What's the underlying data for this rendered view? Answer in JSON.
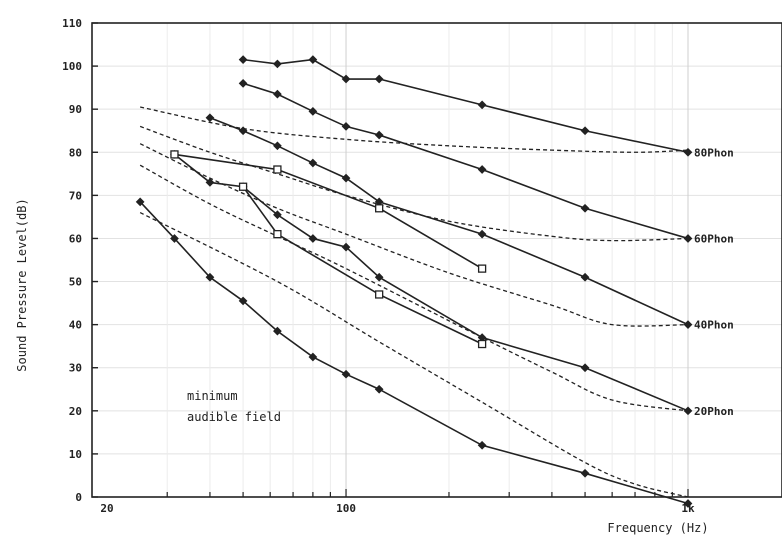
{
  "chart_data": {
    "type": "line",
    "xlabel": "Frequency (Hz)",
    "ylabel": "Sound Pressure Level(dB)",
    "x_scale": "log",
    "xlim": [
      20,
      1600
    ],
    "ylim": [
      0,
      110
    ],
    "xticks": [
      {
        "value": 20,
        "label": "20"
      },
      {
        "value": 100,
        "label": "100"
      },
      {
        "value": 1000,
        "label": "1k"
      }
    ],
    "yticks": [
      0,
      10,
      20,
      30,
      40,
      50,
      60,
      70,
      80,
      90,
      100,
      110
    ],
    "annotation": [
      "minimum",
      "audible field"
    ],
    "curve_labels": [
      {
        "text": "80Phon",
        "y": 80
      },
      {
        "text": "60Phon",
        "y": 60
      },
      {
        "text": "40Phon",
        "y": 40
      },
      {
        "text": "20Phon",
        "y": 20
      }
    ],
    "series": [
      {
        "style": "dashed",
        "x": [
          25,
          50,
          100,
          200,
          400,
          700,
          1000
        ],
        "y": [
          90.5,
          85.5,
          83,
          81.5,
          80.5,
          80,
          80.5
        ]
      },
      {
        "style": "dashed",
        "x": [
          25,
          40,
          63,
          100,
          200,
          400,
          600,
          1000
        ],
        "y": [
          86,
          80,
          75,
          70,
          64,
          60.5,
          59.5,
          60
        ]
      },
      {
        "style": "dashed",
        "x": [
          25,
          40,
          63,
          100,
          200,
          400,
          600,
          1000
        ],
        "y": [
          82,
          74,
          67,
          61,
          52,
          44.5,
          40,
          40
        ]
      },
      {
        "style": "dashed",
        "x": [
          25,
          40,
          63,
          100,
          250,
          400,
          600,
          1000
        ],
        "y": [
          77,
          68,
          60.5,
          53,
          37,
          29,
          22.5,
          20
        ]
      },
      {
        "style": "dashed",
        "x": [
          25,
          63,
          125,
          250,
          500,
          700,
          1000
        ],
        "y": [
          66,
          50,
          36,
          22,
          8,
          3,
          0
        ]
      },
      {
        "style": "solid",
        "marker": "diamond",
        "x": [
          50,
          63,
          80,
          100,
          125,
          250,
          500,
          1000
        ],
        "y": [
          101.5,
          100.5,
          101.5,
          97,
          97,
          91,
          85,
          80
        ]
      },
      {
        "style": "solid",
        "marker": "diamond",
        "x": [
          50,
          63,
          80,
          100,
          125,
          250,
          500,
          1000
        ],
        "y": [
          96,
          93.5,
          89.5,
          86,
          84,
          76,
          67,
          60
        ]
      },
      {
        "style": "solid",
        "marker": "diamond",
        "x": [
          40,
          50,
          63,
          80,
          100,
          125,
          250,
          500,
          1000
        ],
        "y": [
          88,
          85,
          81.5,
          77.5,
          74,
          68.5,
          61,
          51,
          40
        ]
      },
      {
        "style": "solid",
        "marker": "diamond",
        "x": [
          31.5,
          40,
          50,
          63,
          80,
          100,
          125,
          250,
          500,
          1000
        ],
        "y": [
          79.5,
          73,
          72,
          65.5,
          60,
          58,
          51,
          37,
          30,
          20
        ]
      },
      {
        "style": "solid",
        "marker": "square",
        "x": [
          31.5,
          63,
          125,
          250
        ],
        "y": [
          79.5,
          76,
          67,
          53
        ]
      },
      {
        "style": "solid",
        "marker": "square",
        "x": [
          50,
          63,
          125,
          250
        ],
        "y": [
          72,
          61,
          47,
          35.5
        ]
      },
      {
        "style": "solid",
        "marker": "diamond",
        "x": [
          25,
          31.5,
          40,
          50,
          63,
          80,
          100,
          125,
          250,
          500,
          1000
        ],
        "y": [
          68.5,
          60,
          51,
          45.5,
          38.5,
          32.5,
          28.5,
          25,
          12,
          5.5,
          -1.5
        ]
      }
    ]
  }
}
